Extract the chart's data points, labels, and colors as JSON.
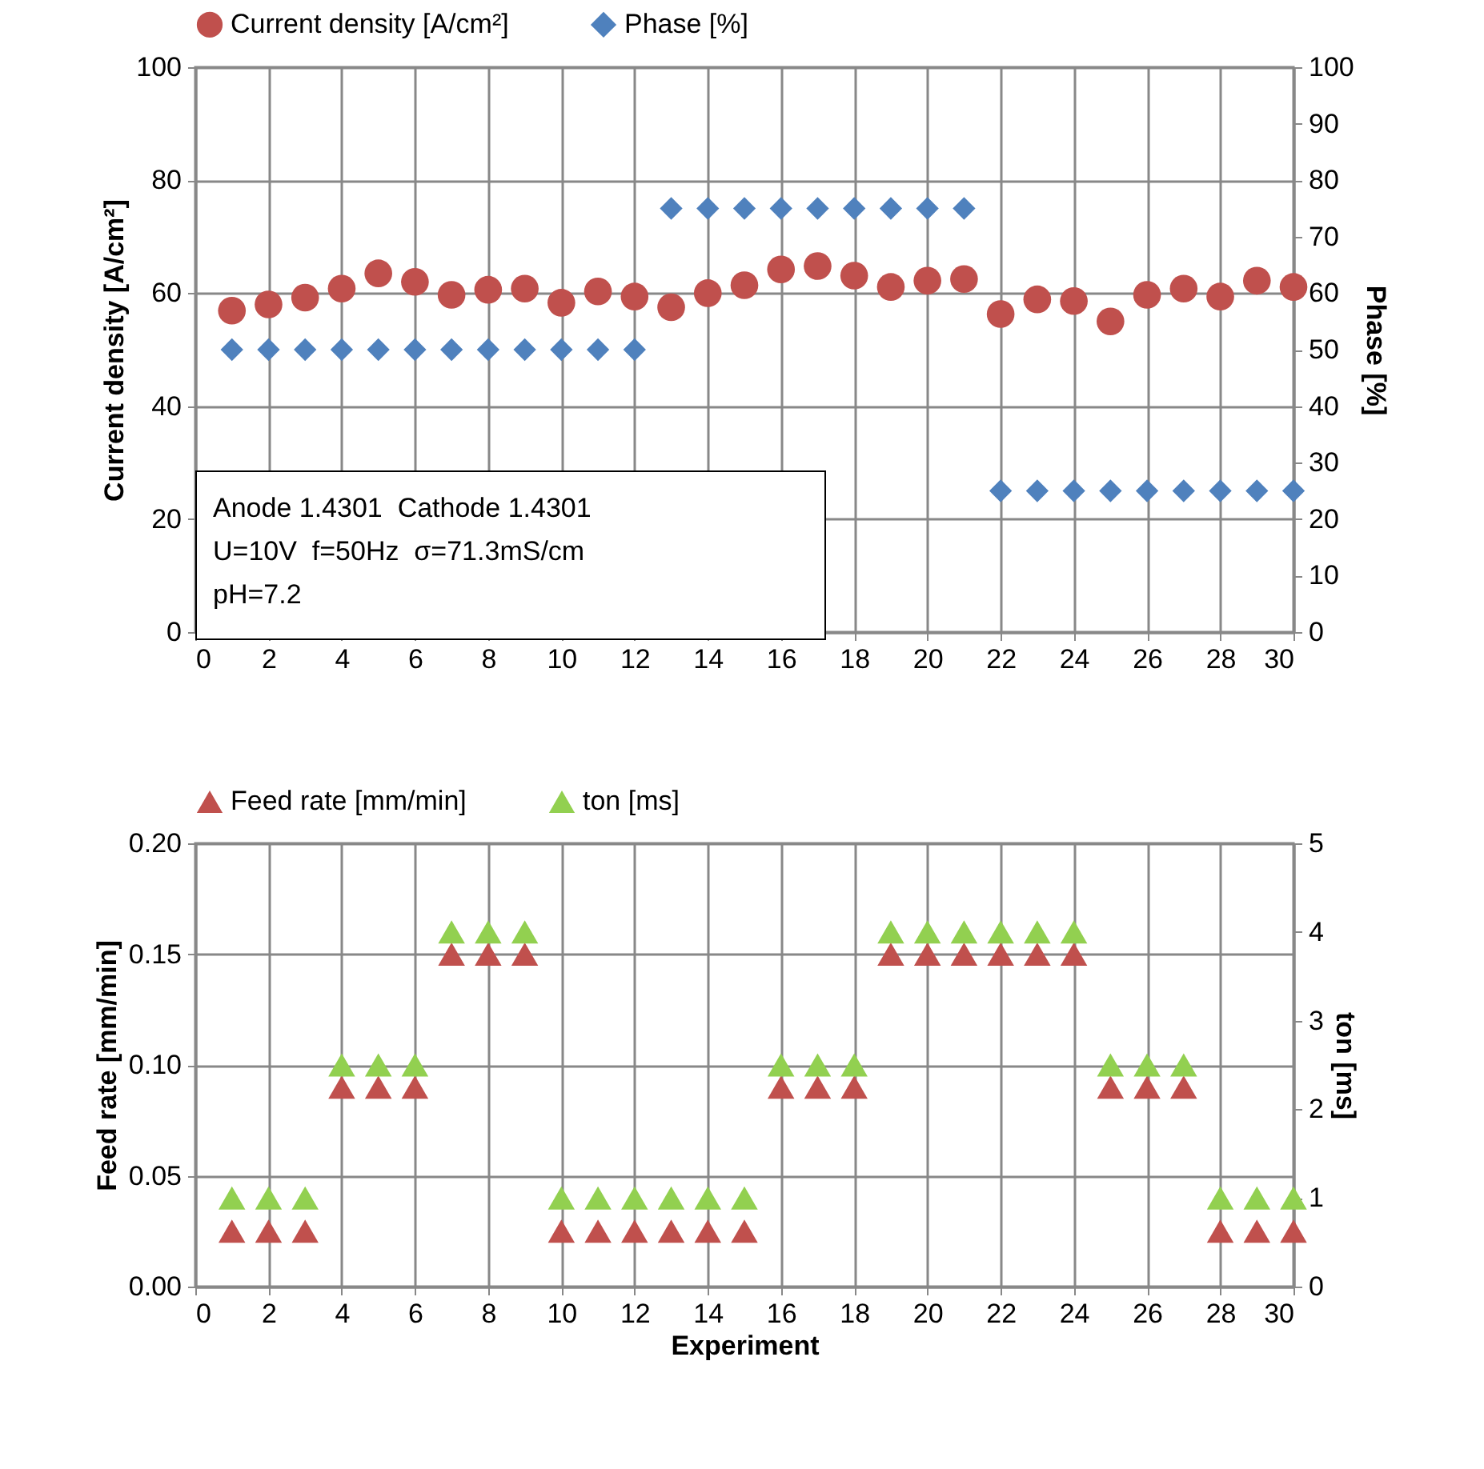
{
  "chart_data": [
    {
      "type": "scatter",
      "xlabel": null,
      "ylabel": "Current density [A/cm²]",
      "y2label": "Phase [%]",
      "legend": "top",
      "grid": true,
      "x": [
        1,
        2,
        3,
        4,
        5,
        6,
        7,
        8,
        9,
        10,
        11,
        12,
        13,
        14,
        15,
        16,
        17,
        18,
        19,
        20,
        21,
        22,
        23,
        24,
        25,
        26,
        27,
        28,
        29,
        30
      ],
      "xlim": [
        0,
        30
      ],
      "xticks": [
        0,
        2,
        4,
        6,
        8,
        10,
        12,
        14,
        16,
        18,
        20,
        22,
        24,
        26,
        28,
        30
      ],
      "ylim": [
        0,
        100
      ],
      "yticks": [
        0,
        20,
        40,
        60,
        80,
        100
      ],
      "y2lim": [
        0,
        100
      ],
      "y2ticks": [
        0,
        10,
        20,
        30,
        40,
        50,
        60,
        70,
        80,
        90,
        100
      ],
      "annotations": [
        "Anode 1.4301  Cathode 1.4301",
        "U=10V  f=50Hz  σ=71.3mS/cm",
        "pH=7.2"
      ],
      "series": [
        {
          "name": "Current density [A/cm²]",
          "color": "#c0504d",
          "marker": "circle",
          "values": [
            56.9,
            58,
            59.2,
            60.8,
            63.5,
            62,
            59.7,
            60.6,
            60.8,
            58.3,
            60.3,
            59.4,
            57.5,
            60,
            61.4,
            64.2,
            64.8,
            63.1,
            61.1,
            62.2,
            62.5,
            56.3,
            58.9,
            58.6,
            55,
            59.7,
            60.8,
            59.4,
            62.2,
            61.1
          ]
        },
        {
          "name": "Phase [%]",
          "color": "#4f81bd",
          "marker": "diamond",
          "axis": "y2",
          "values": [
            50,
            50,
            50,
            50,
            50,
            50,
            50,
            50,
            50,
            50,
            50,
            50,
            75,
            75,
            75,
            75,
            75,
            75,
            75,
            75,
            75,
            25,
            25,
            25,
            25,
            25,
            25,
            25,
            25,
            25
          ]
        }
      ]
    },
    {
      "type": "scatter",
      "xlabel": "Experiment",
      "ylabel": "Feed rate [mm/min]",
      "y2label": "ton [ms]",
      "legend": "top",
      "grid": true,
      "x": [
        1,
        2,
        3,
        4,
        5,
        6,
        7,
        8,
        9,
        10,
        11,
        12,
        13,
        14,
        15,
        16,
        17,
        18,
        19,
        20,
        21,
        22,
        23,
        24,
        25,
        26,
        27,
        28,
        29,
        30
      ],
      "xlim": [
        0,
        30
      ],
      "xticks": [
        0,
        2,
        4,
        6,
        8,
        10,
        12,
        14,
        16,
        18,
        20,
        22,
        24,
        26,
        28,
        30
      ],
      "ylim": [
        0,
        0.2
      ],
      "yticks": [
        {
          "value": 0,
          "label": "0.00"
        },
        {
          "value": 0.05,
          "label": "0.05"
        },
        {
          "value": 0.1,
          "label": "0.10"
        },
        {
          "value": 0.15,
          "label": "0.15"
        },
        {
          "value": 0.2,
          "label": "0.20"
        }
      ],
      "y2lim": [
        0,
        5
      ],
      "y2ticks": [
        0,
        1,
        2,
        3,
        4,
        5
      ],
      "series": [
        {
          "name": "Feed rate [mm/min]",
          "color": "#c0504d",
          "marker": "triangle",
          "values": [
            0.025,
            0.025,
            0.025,
            0.09,
            0.09,
            0.09,
            0.15,
            0.15,
            0.15,
            0.025,
            0.025,
            0.025,
            0.025,
            0.025,
            0.025,
            0.09,
            0.09,
            0.09,
            0.15,
            0.15,
            0.15,
            0.15,
            0.15,
            0.15,
            0.09,
            0.09,
            0.09,
            0.025,
            0.025,
            0.025
          ]
        },
        {
          "name": "ton [ms]",
          "color": "#92d050",
          "marker": "triangle",
          "axis": "y2",
          "values": [
            1,
            1,
            1,
            2.5,
            2.5,
            2.5,
            4,
            4,
            4,
            1,
            1,
            1,
            1,
            1,
            1,
            2.5,
            2.5,
            2.5,
            4,
            4,
            4,
            4,
            4,
            4,
            2.5,
            2.5,
            2.5,
            1,
            1,
            1
          ]
        }
      ]
    }
  ]
}
